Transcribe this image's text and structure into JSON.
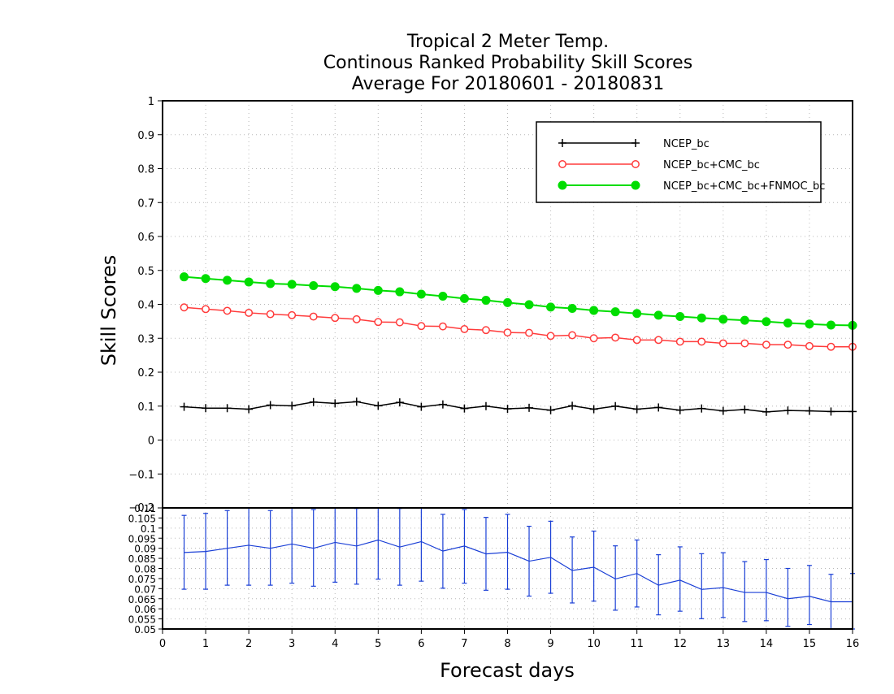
{
  "chart_data": [
    {
      "type": "line",
      "title_lines": [
        "Tropical 2 Meter Temp.",
        "Continous Ranked Probability Skill Scores",
        "Average For 20180601 - 20180831"
      ],
      "ylabel": "Skill Scores",
      "ylim": [
        -0.2,
        1.0
      ],
      "y_ticks": [
        "-0.2",
        "-0.1",
        "0",
        "0.1",
        "0.2",
        "0.3",
        "0.4",
        "0.5",
        "0.6",
        "0.7",
        "0.8",
        "0.9",
        "1"
      ],
      "grid": true,
      "legend_position": "top-right",
      "x": [
        0.5,
        1.0,
        1.5,
        2.0,
        2.5,
        3.0,
        3.5,
        4.0,
        4.5,
        5.0,
        5.5,
        6.0,
        6.5,
        7.0,
        7.5,
        8.0,
        8.5,
        9.0,
        9.5,
        10.0,
        10.5,
        11.0,
        11.5,
        12.0,
        12.5,
        13.0,
        13.5,
        14.0,
        14.5,
        15.0,
        15.5,
        16.0
      ],
      "series": [
        {
          "name": "NCEP_bc",
          "color": "#000000",
          "marker": "plus",
          "values": [
            0.098,
            0.094,
            0.094,
            0.091,
            0.103,
            0.101,
            0.112,
            0.108,
            0.113,
            0.101,
            0.111,
            0.098,
            0.105,
            0.093,
            0.1,
            0.092,
            0.095,
            0.088,
            0.101,
            0.091,
            0.1,
            0.091,
            0.096,
            0.088,
            0.093,
            0.086,
            0.09,
            0.083,
            0.087,
            0.086,
            0.084,
            0.084
          ]
        },
        {
          "name": "NCEP_bc+CMC_bc",
          "color": "#ff3b3b",
          "marker": "open-circle",
          "values": [
            0.391,
            0.386,
            0.381,
            0.375,
            0.371,
            0.368,
            0.364,
            0.36,
            0.356,
            0.348,
            0.347,
            0.336,
            0.335,
            0.327,
            0.324,
            0.317,
            0.316,
            0.307,
            0.309,
            0.3,
            0.302,
            0.295,
            0.295,
            0.29,
            0.29,
            0.285,
            0.285,
            0.281,
            0.281,
            0.277,
            0.275,
            0.275
          ]
        },
        {
          "name": "NCEP_bc+CMC_bc+FNMOC_bc",
          "color": "#00dd00",
          "marker": "filled-circle",
          "values": [
            0.481,
            0.476,
            0.471,
            0.466,
            0.461,
            0.459,
            0.455,
            0.452,
            0.447,
            0.441,
            0.437,
            0.43,
            0.424,
            0.417,
            0.412,
            0.405,
            0.399,
            0.392,
            0.388,
            0.382,
            0.378,
            0.373,
            0.368,
            0.364,
            0.36,
            0.356,
            0.353,
            0.349,
            0.345,
            0.342,
            0.339,
            0.338
          ]
        }
      ]
    },
    {
      "type": "line",
      "xlabel": "Forecast days",
      "ylim": [
        0.05,
        0.11
      ],
      "top_tick_label": "-0.2",
      "y_ticks": [
        "0.05",
        "0.055",
        "0.06",
        "0.065",
        "0.07",
        "0.075",
        "0.08",
        "0.085",
        "0.09",
        "0.095",
        "0.1",
        "0.105",
        "0.11"
      ],
      "x_ticks": [
        "0",
        "1",
        "2",
        "3",
        "4",
        "5",
        "6",
        "7",
        "8",
        "9",
        "10",
        "11",
        "12",
        "13",
        "14",
        "15",
        "16"
      ],
      "xlim": [
        0,
        16
      ],
      "x": [
        0.5,
        1.0,
        1.5,
        2.0,
        2.5,
        3.0,
        3.5,
        4.0,
        4.5,
        5.0,
        5.5,
        6.0,
        6.5,
        7.0,
        7.5,
        8.0,
        8.5,
        9.0,
        9.5,
        10.0,
        10.5,
        11.0,
        11.5,
        12.0,
        12.5,
        13.0,
        13.5,
        14.0,
        14.5,
        15.0,
        15.5,
        16.0
      ],
      "series": [
        {
          "color": "#1a3fd6",
          "values": [
            0.0879,
            0.0884,
            0.09,
            0.0915,
            0.09,
            0.0921,
            0.09,
            0.0929,
            0.0911,
            0.0941,
            0.0906,
            0.0933,
            0.0886,
            0.0911,
            0.0872,
            0.088,
            0.0836,
            0.0855,
            0.079,
            0.0806,
            0.0748,
            0.0775,
            0.0717,
            0.0742,
            0.0696,
            0.0705,
            0.0681,
            0.0681,
            0.065,
            0.0662,
            0.0635,
            0.0635
          ],
          "error_low": [
            0.0697,
            0.0697,
            0.0717,
            0.0717,
            0.0717,
            0.0727,
            0.0712,
            0.0732,
            0.0722,
            0.0747,
            0.0717,
            0.0737,
            0.0702,
            0.0727,
            0.0692,
            0.0697,
            0.0663,
            0.0677,
            0.0629,
            0.0638,
            0.0593,
            0.0609,
            0.057,
            0.0588,
            0.0551,
            0.0557,
            0.0537,
            0.0541,
            0.0513,
            0.0522,
            0.05,
            0.05
          ],
          "error_high": [
            0.1063,
            0.1073,
            0.1087,
            0.1102,
            0.1087,
            0.1112,
            0.1092,
            0.1122,
            0.1097,
            0.1131,
            0.1097,
            0.1131,
            0.1068,
            0.1092,
            0.1053,
            0.1068,
            0.1009,
            0.1034,
            0.0956,
            0.0985,
            0.0912,
            0.0941,
            0.0868,
            0.0907,
            0.0873,
            0.0878,
            0.0834,
            0.0844,
            0.08,
            0.0815,
            0.0771,
            0.0775
          ]
        }
      ]
    }
  ]
}
